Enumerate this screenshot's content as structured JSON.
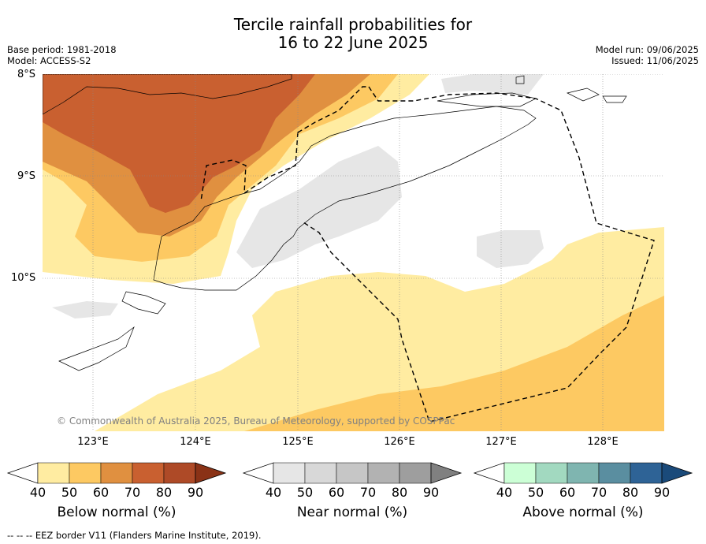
{
  "title_line1": "Tercile rainfall probabilities for",
  "title_line2": "16 to 22 June 2025",
  "base_period": "Base period: 1981-2018",
  "model": "Model: ACCESS-S2",
  "model_run": "Model run: 09/06/2025",
  "issued": "Issued: 11/06/2025",
  "lat_labels": [
    "8°S",
    "9°S",
    "10°S"
  ],
  "lon_labels": [
    "123°E",
    "124°E",
    "125°E",
    "126°E",
    "127°E",
    "128°E"
  ],
  "copyright": "© Commonwealth of Australia 2025, Bureau of Meteorology, supported by COSPPac",
  "colorbars": [
    {
      "title": "Below normal (%)",
      "ticks": [
        "40",
        "50",
        "60",
        "70",
        "80",
        "90"
      ],
      "colors": [
        "#ffeca1",
        "#fdc962",
        "#e09040",
        "#c96030",
        "#ae4a27",
        "#8a3216"
      ]
    },
    {
      "title": "Near normal (%)",
      "ticks": [
        "40",
        "50",
        "60",
        "70",
        "80",
        "90"
      ],
      "colors": [
        "#e6e6e6",
        "#d8d8d8",
        "#c6c6c6",
        "#b2b2b2",
        "#9e9e9e",
        "#808080"
      ]
    },
    {
      "title": "Above normal (%)",
      "ticks": [
        "40",
        "50",
        "60",
        "70",
        "80",
        "90"
      ],
      "colors": [
        "#ccffd6",
        "#a2d9c0",
        "#7fb5b0",
        "#5a8ea0",
        "#2e6396",
        "#1a4a7a"
      ]
    }
  ],
  "footer": "--  --  -- EEZ border V11 (Flanders Marine Institute, 2019)."
}
